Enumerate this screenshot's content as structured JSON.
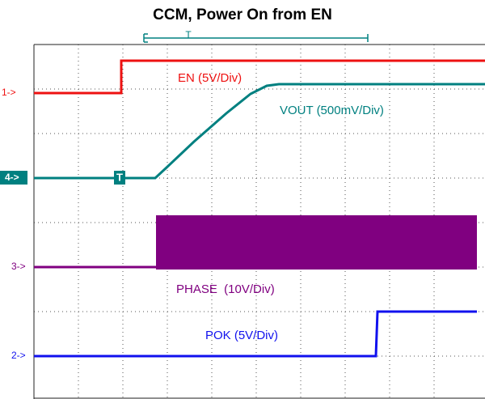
{
  "title": "CCM, Power On from EN",
  "trigger": "T",
  "channels": [
    {
      "marker": "1->",
      "label": "EN (5V/Div)"
    },
    {
      "marker": "4->",
      "label": "VOUT (500mV/Div)"
    },
    {
      "marker": "3->",
      "label": "PHASE  (10V/Div)"
    },
    {
      "marker": "2->",
      "label": "POK (5V/Div)"
    }
  ]
}
